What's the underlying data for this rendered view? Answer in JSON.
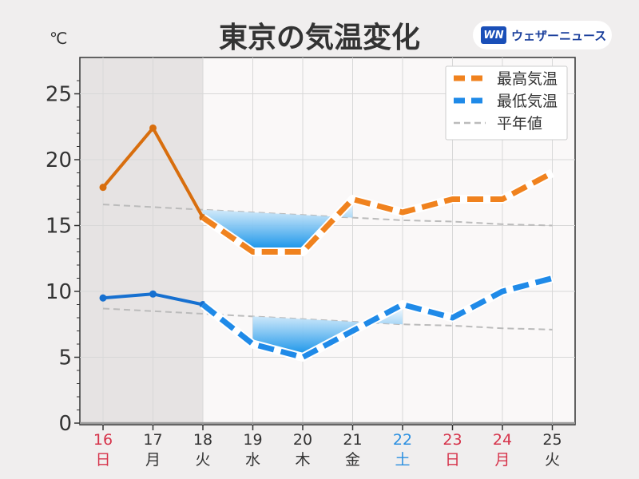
{
  "page": {
    "title": "東京の気温変化",
    "unit": "℃",
    "brand": {
      "logo_text": "WN",
      "name": "ウェザーニュース",
      "logo_color": "#1a4fb8"
    }
  },
  "chart_data": {
    "type": "line",
    "title": "東京の気温変化",
    "ylabel": "℃",
    "ylim": [
      0,
      27.5
    ],
    "yticks": [
      0,
      5,
      10,
      15,
      20,
      25
    ],
    "grid": true,
    "legend_position": "top-right",
    "categories": [
      {
        "day": "16",
        "weekday": "日",
        "color": "#d6334a"
      },
      {
        "day": "17",
        "weekday": "月",
        "color": "#333333"
      },
      {
        "day": "18",
        "weekday": "火",
        "color": "#333333"
      },
      {
        "day": "19",
        "weekday": "水",
        "color": "#333333"
      },
      {
        "day": "20",
        "weekday": "木",
        "color": "#333333"
      },
      {
        "day": "21",
        "weekday": "金",
        "color": "#333333"
      },
      {
        "day": "22",
        "weekday": "土",
        "color": "#2a8fe0"
      },
      {
        "day": "23",
        "weekday": "日",
        "color": "#d6334a"
      },
      {
        "day": "24",
        "weekday": "月",
        "color": "#d6334a"
      },
      {
        "day": "25",
        "weekday": "火",
        "color": "#333333"
      }
    ],
    "observed_through_index": 2,
    "series": [
      {
        "name": "最高気温",
        "values": [
          17.9,
          22.4,
          15.6,
          13,
          13,
          17,
          16,
          17,
          17,
          19
        ],
        "observed_color": "#d86e0e",
        "forecast_color": "#f0821e"
      },
      {
        "name": "最低気温",
        "values": [
          9.5,
          9.8,
          9.0,
          6,
          5,
          7,
          9,
          8,
          10,
          11
        ],
        "observed_color": "#1670d0",
        "forecast_color": "#1f8ae8"
      },
      {
        "name": "平年値",
        "values_high": [
          16.6,
          16.4,
          16.2,
          16.0,
          15.8,
          15.6,
          15.4,
          15.3,
          15.1,
          15.0
        ],
        "values_low": [
          8.7,
          8.5,
          8.3,
          8.1,
          7.9,
          7.7,
          7.5,
          7.4,
          7.2,
          7.1
        ],
        "color": "#bbbbbb"
      }
    ]
  }
}
